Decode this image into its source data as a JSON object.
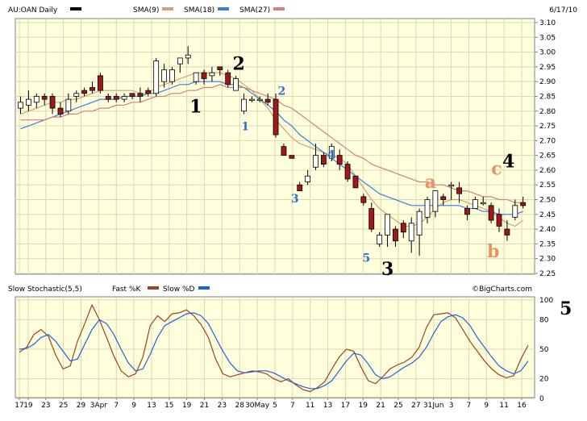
{
  "chart_data": [
    {
      "type": "candlestick",
      "symbol_label": "AU:OAN Daily",
      "date_label": "6/17/10",
      "watermark": "©BigCharts.com",
      "ylim": [
        2.25,
        3.1
      ],
      "grid": true,
      "legend": [
        {
          "name": "SMA(9)",
          "color": "#d4a070"
        },
        {
          "name": "SMA(18)",
          "color": "#3a7fe0"
        },
        {
          "name": "SMA(27)",
          "color": "#d08080"
        }
      ],
      "y_ticks": [
        "3.10",
        "3.05",
        "3.00",
        "2.95",
        "2.90",
        "2.85",
        "2.80",
        "2.75",
        "2.70",
        "2.65",
        "2.60",
        "2.55",
        "2.50",
        "2.45",
        "2.40",
        "2.35",
        "2.30",
        "2.25"
      ],
      "x_ticks": [
        {
          "label": "17",
          "idx": 0
        },
        {
          "label": "19",
          "idx": 1
        },
        {
          "label": "23",
          "idx": 3
        },
        {
          "label": "25",
          "idx": 5
        },
        {
          "label": "29",
          "idx": 7
        },
        {
          "label": "3Apr",
          "idx": 9
        },
        {
          "label": "7",
          "idx": 11
        },
        {
          "label": "9",
          "idx": 13
        },
        {
          "label": "13",
          "idx": 15
        },
        {
          "label": "15",
          "idx": 17
        },
        {
          "label": "19",
          "idx": 19
        },
        {
          "label": "21",
          "idx": 21
        },
        {
          "label": "23",
          "idx": 23
        },
        {
          "label": "28",
          "idx": 25
        },
        {
          "label": "30May",
          "idx": 27
        },
        {
          "label": "5",
          "idx": 29
        },
        {
          "label": "7",
          "idx": 31
        },
        {
          "label": "11",
          "idx": 33
        },
        {
          "label": "13",
          "idx": 35
        },
        {
          "label": "17",
          "idx": 37
        },
        {
          "label": "19",
          "idx": 39
        },
        {
          "label": "21",
          "idx": 41
        },
        {
          "label": "25",
          "idx": 43
        },
        {
          "label": "27",
          "idx": 45
        },
        {
          "label": "31Jun",
          "idx": 47
        },
        {
          "label": "3",
          "idx": 49
        },
        {
          "label": "7",
          "idx": 51
        },
        {
          "label": "9",
          "idx": 53
        },
        {
          "label": "11",
          "idx": 55
        },
        {
          "label": "16",
          "idx": 57
        }
      ],
      "candles": [
        {
          "o": 2.81,
          "h": 2.85,
          "l": 2.79,
          "c": 2.83
        },
        {
          "o": 2.82,
          "h": 2.87,
          "l": 2.8,
          "c": 2.84
        },
        {
          "o": 2.83,
          "h": 2.86,
          "l": 2.81,
          "c": 2.85
        },
        {
          "o": 2.85,
          "h": 2.86,
          "l": 2.82,
          "c": 2.84
        },
        {
          "o": 2.85,
          "h": 2.86,
          "l": 2.79,
          "c": 2.81
        },
        {
          "o": 2.81,
          "h": 2.83,
          "l": 2.78,
          "c": 2.79
        },
        {
          "o": 2.8,
          "h": 2.86,
          "l": 2.79,
          "c": 2.84
        },
        {
          "o": 2.85,
          "h": 2.87,
          "l": 2.83,
          "c": 2.86
        },
        {
          "o": 2.87,
          "h": 2.88,
          "l": 2.85,
          "c": 2.86
        },
        {
          "o": 2.88,
          "h": 2.9,
          "l": 2.86,
          "c": 2.87
        },
        {
          "o": 2.92,
          "h": 2.93,
          "l": 2.86,
          "c": 2.87
        },
        {
          "o": 2.85,
          "h": 2.86,
          "l": 2.83,
          "c": 2.84
        },
        {
          "o": 2.85,
          "h": 2.86,
          "l": 2.83,
          "c": 2.84
        },
        {
          "o": 2.84,
          "h": 2.86,
          "l": 2.83,
          "c": 2.85
        },
        {
          "o": 2.86,
          "h": 2.86,
          "l": 2.84,
          "c": 2.85
        },
        {
          "o": 2.86,
          "h": 2.88,
          "l": 2.83,
          "c": 2.85
        },
        {
          "o": 2.87,
          "h": 2.88,
          "l": 2.85,
          "c": 2.86
        },
        {
          "o": 2.86,
          "h": 2.98,
          "l": 2.85,
          "c": 2.97
        },
        {
          "o": 2.9,
          "h": 2.96,
          "l": 2.88,
          "c": 2.94
        },
        {
          "o": 2.9,
          "h": 2.95,
          "l": 2.89,
          "c": 2.94
        },
        {
          "o": 2.96,
          "h": 2.98,
          "l": 2.93,
          "c": 2.98
        },
        {
          "o": 2.98,
          "h": 3.02,
          "l": 2.96,
          "c": 2.99
        },
        {
          "o": 2.9,
          "h": 2.93,
          "l": 2.89,
          "c": 2.93
        },
        {
          "o": 2.93,
          "h": 2.94,
          "l": 2.89,
          "c": 2.91
        },
        {
          "o": 2.92,
          "h": 2.95,
          "l": 2.9,
          "c": 2.93
        },
        {
          "o": 2.95,
          "h": 2.95,
          "l": 2.92,
          "c": 2.94
        },
        {
          "o": 2.93,
          "h": 2.94,
          "l": 2.88,
          "c": 2.89
        },
        {
          "o": 2.87,
          "h": 2.92,
          "l": 2.87,
          "c": 2.91
        },
        {
          "o": 2.8,
          "h": 2.86,
          "l": 2.79,
          "c": 2.84
        },
        {
          "o": 2.84,
          "h": 2.85,
          "l": 2.83,
          "c": 2.84
        },
        {
          "o": 2.84,
          "h": 2.85,
          "l": 2.83,
          "c": 2.84
        },
        {
          "o": 2.84,
          "h": 2.86,
          "l": 2.82,
          "c": 2.83
        },
        {
          "o": 2.84,
          "h": 2.86,
          "l": 2.71,
          "c": 2.72
        },
        {
          "o": 2.68,
          "h": 2.69,
          "l": 2.65,
          "c": 2.65
        },
        {
          "o": 2.65,
          "h": 2.65,
          "l": 2.64,
          "c": 2.64
        },
        {
          "o": 2.55,
          "h": 2.56,
          "l": 2.53,
          "c": 2.53
        },
        {
          "o": 2.56,
          "h": 2.6,
          "l": 2.55,
          "c": 2.58
        },
        {
          "o": 2.61,
          "h": 2.69,
          "l": 2.6,
          "c": 2.65
        },
        {
          "o": 2.65,
          "h": 2.66,
          "l": 2.61,
          "c": 2.62
        },
        {
          "o": 2.64,
          "h": 2.69,
          "l": 2.63,
          "c": 2.68
        },
        {
          "o": 2.65,
          "h": 2.67,
          "l": 2.6,
          "c": 2.62
        },
        {
          "o": 2.62,
          "h": 2.63,
          "l": 2.56,
          "c": 2.57
        },
        {
          "o": 2.58,
          "h": 2.58,
          "l": 2.54,
          "c": 2.54
        },
        {
          "o": 2.51,
          "h": 2.52,
          "l": 2.48,
          "c": 2.49
        },
        {
          "o": 2.47,
          "h": 2.49,
          "l": 2.39,
          "c": 2.4
        },
        {
          "o": 2.35,
          "h": 2.39,
          "l": 2.34,
          "c": 2.38
        },
        {
          "o": 2.38,
          "h": 2.45,
          "l": 2.34,
          "c": 2.45
        },
        {
          "o": 2.4,
          "h": 2.41,
          "l": 2.34,
          "c": 2.36
        },
        {
          "o": 2.42,
          "h": 2.43,
          "l": 2.37,
          "c": 2.39
        },
        {
          "o": 2.36,
          "h": 2.44,
          "l": 2.32,
          "c": 2.42
        },
        {
          "o": 2.38,
          "h": 2.47,
          "l": 2.31,
          "c": 2.46
        },
        {
          "o": 2.44,
          "h": 2.51,
          "l": 2.42,
          "c": 2.5
        },
        {
          "o": 2.46,
          "h": 2.53,
          "l": 2.44,
          "c": 2.53
        },
        {
          "o": 2.51,
          "h": 2.52,
          "l": 2.48,
          "c": 2.5
        },
        {
          "o": 2.55,
          "h": 2.56,
          "l": 2.5,
          "c": 2.55
        },
        {
          "o": 2.54,
          "h": 2.56,
          "l": 2.49,
          "c": 2.52
        },
        {
          "o": 2.47,
          "h": 2.48,
          "l": 2.43,
          "c": 2.45
        },
        {
          "o": 2.47,
          "h": 2.51,
          "l": 2.47,
          "c": 2.5
        },
        {
          "o": 2.49,
          "h": 2.51,
          "l": 2.48,
          "c": 2.49
        },
        {
          "o": 2.48,
          "h": 2.49,
          "l": 2.42,
          "c": 2.43
        },
        {
          "o": 2.45,
          "h": 2.47,
          "l": 2.39,
          "c": 2.41
        },
        {
          "o": 2.4,
          "h": 2.43,
          "l": 2.36,
          "c": 2.38
        },
        {
          "o": 2.44,
          "h": 2.5,
          "l": 2.43,
          "c": 2.48
        },
        {
          "o": 2.49,
          "h": 2.51,
          "l": 2.47,
          "c": 2.48
        }
      ],
      "sma_series": [
        {
          "name": "SMA(9)",
          "color": "#d4a070",
          "values": [
            2.79,
            2.8,
            2.81,
            2.82,
            2.83,
            2.83,
            2.84,
            2.84,
            2.85,
            2.86,
            2.87,
            2.87,
            2.87,
            2.87,
            2.87,
            2.86,
            2.86,
            2.88,
            2.89,
            2.9,
            2.91,
            2.92,
            2.93,
            2.93,
            2.93,
            2.93,
            2.92,
            2.91,
            2.89,
            2.87,
            2.84,
            2.81,
            2.77,
            2.74,
            2.71,
            2.69,
            2.68,
            2.67,
            2.66,
            2.65,
            2.64,
            2.62,
            2.58,
            2.54,
            2.5,
            2.47,
            2.45,
            2.43,
            2.41,
            2.41,
            2.42,
            2.44,
            2.47,
            2.49,
            2.5,
            2.5,
            2.49,
            2.48,
            2.47,
            2.46,
            2.44,
            2.42,
            2.41,
            2.43
          ]
        },
        {
          "name": "SMA(18)",
          "color": "#3a7fe0",
          "values": [
            2.74,
            2.75,
            2.76,
            2.77,
            2.78,
            2.79,
            2.8,
            2.81,
            2.82,
            2.83,
            2.84,
            2.84,
            2.84,
            2.85,
            2.85,
            2.85,
            2.86,
            2.86,
            2.87,
            2.88,
            2.89,
            2.89,
            2.9,
            2.9,
            2.9,
            2.9,
            2.89,
            2.89,
            2.88,
            2.86,
            2.84,
            2.82,
            2.8,
            2.77,
            2.75,
            2.72,
            2.7,
            2.68,
            2.66,
            2.64,
            2.62,
            2.6,
            2.58,
            2.56,
            2.54,
            2.52,
            2.51,
            2.5,
            2.49,
            2.48,
            2.48,
            2.48,
            2.48,
            2.48,
            2.48,
            2.48,
            2.47,
            2.47,
            2.46,
            2.46,
            2.45,
            2.45,
            2.45,
            2.46
          ]
        },
        {
          "name": "SMA(27)",
          "color": "#d08080",
          "values": [
            2.77,
            2.77,
            2.77,
            2.77,
            2.78,
            2.78,
            2.79,
            2.79,
            2.8,
            2.8,
            2.81,
            2.81,
            2.82,
            2.82,
            2.83,
            2.83,
            2.84,
            2.85,
            2.85,
            2.86,
            2.86,
            2.87,
            2.87,
            2.88,
            2.88,
            2.89,
            2.88,
            2.88,
            2.88,
            2.87,
            2.86,
            2.85,
            2.84,
            2.82,
            2.81,
            2.79,
            2.77,
            2.75,
            2.73,
            2.71,
            2.69,
            2.67,
            2.65,
            2.64,
            2.62,
            2.61,
            2.6,
            2.59,
            2.58,
            2.57,
            2.56,
            2.56,
            2.55,
            2.55,
            2.54,
            2.53,
            2.53,
            2.52,
            2.51,
            2.51,
            2.5,
            2.5,
            2.49,
            2.49
          ]
        }
      ],
      "annotations": [
        {
          "text": "1",
          "color": "#000000",
          "size": 22,
          "idx": 26.5,
          "price": 2.795
        },
        {
          "text": "2",
          "color": "#000000",
          "size": 22,
          "idx": 33,
          "price": 2.94
        },
        {
          "text": "1",
          "color": "#2a6fd0",
          "size": 14,
          "idx": 34,
          "price": 2.735
        },
        {
          "text": "2",
          "color": "#2a6fd0",
          "size": 14,
          "idx": 39.5,
          "price": 2.855
        },
        {
          "text": "3",
          "color": "#2a6fd0",
          "size": 14,
          "idx": 41.5,
          "price": 2.49
        },
        {
          "text": "4",
          "color": "#2a6fd0",
          "size": 14,
          "idx": 47,
          "price": 2.64
        },
        {
          "text": "5",
          "color": "#2a6fd0",
          "size": 14,
          "idx": 52.3,
          "price": 2.29
        },
        {
          "text": "3",
          "color": "#000000",
          "size": 22,
          "idx": 55.5,
          "price": 2.245
        },
        {
          "text": "a",
          "color": "#f09060",
          "size": 22,
          "idx": 62,
          "price": 2.54
        },
        {
          "text": "b",
          "color": "#f09060",
          "size": 22,
          "idx": 71.5,
          "price": 2.305
        },
        {
          "text": "c",
          "color": "#f09060",
          "size": 22,
          "idx": 72,
          "price": 2.585
        },
        {
          "text": "4",
          "color": "#000000",
          "size": 22,
          "idx": 73.8,
          "price": 2.61
        }
      ]
    },
    {
      "type": "line",
      "title": "Slow Stochastic(5,5)",
      "ylim": [
        0,
        100
      ],
      "y_ticks": [
        100,
        80,
        50,
        20,
        0
      ],
      "series": [
        {
          "name": "Fast %K",
          "color": "#a04020",
          "values": [
            47,
            52,
            65,
            70,
            63,
            44,
            30,
            33,
            58,
            76,
            95,
            80,
            62,
            43,
            28,
            22,
            25,
            42,
            74,
            84,
            78,
            86,
            87,
            90,
            84,
            75,
            62,
            40,
            25,
            22,
            24,
            26,
            28,
            27,
            25,
            20,
            17,
            20,
            14,
            9,
            7,
            11,
            17,
            30,
            42,
            50,
            48,
            32,
            18,
            15,
            22,
            30,
            34,
            37,
            42,
            52,
            72,
            85,
            86,
            87,
            82,
            70,
            58,
            48,
            38,
            30,
            24,
            21,
            23,
            40,
            54
          ]
        },
        {
          "name": "Slow %D",
          "color": "#2060e0",
          "values": [
            50,
            51,
            55,
            62,
            65,
            58,
            48,
            38,
            40,
            55,
            70,
            80,
            76,
            65,
            50,
            36,
            28,
            30,
            45,
            62,
            74,
            78,
            82,
            86,
            87,
            84,
            76,
            62,
            48,
            36,
            28,
            26,
            27,
            28,
            28,
            26,
            22,
            18,
            15,
            12,
            10,
            10,
            13,
            18,
            28,
            38,
            46,
            44,
            35,
            24,
            20,
            22,
            27,
            32,
            36,
            42,
            52,
            66,
            78,
            83,
            85,
            82,
            74,
            62,
            52,
            42,
            33,
            28,
            25,
            28,
            38
          ]
        }
      ],
      "extra_label": "5"
    }
  ]
}
